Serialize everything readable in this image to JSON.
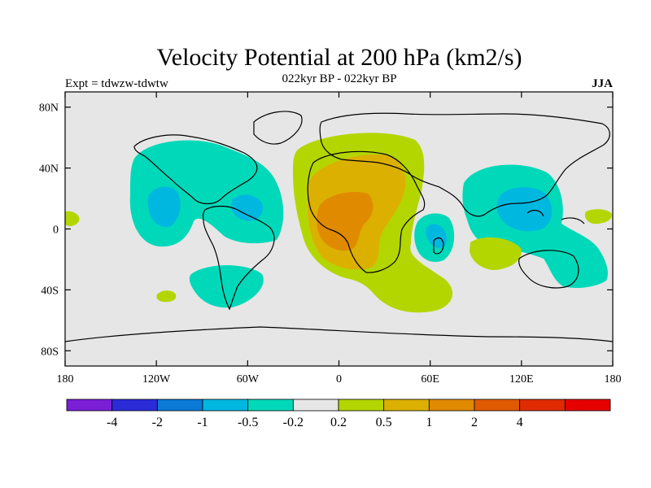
{
  "title": "Velocity Potential at 200 hPa (km2/s)",
  "subtitle": "022kyr BP - 022kyr BP",
  "left_label": "Expt = tdwzw-tdwtw",
  "right_label": "JJA",
  "lat_ticks": [
    {
      "value": 80,
      "label": "80N"
    },
    {
      "value": 40,
      "label": "40N"
    },
    {
      "value": 0,
      "label": "0"
    },
    {
      "value": -40,
      "label": "40S"
    },
    {
      "value": -80,
      "label": "80S"
    }
  ],
  "lon_ticks": [
    {
      "value": -180,
      "label": "180"
    },
    {
      "value": -120,
      "label": "120W"
    },
    {
      "value": -60,
      "label": "60W"
    },
    {
      "value": 0,
      "label": "0"
    },
    {
      "value": 60,
      "label": "60E"
    },
    {
      "value": 120,
      "label": "120E"
    },
    {
      "value": 180,
      "label": "180"
    }
  ],
  "colorbar": {
    "colors": [
      "#7a1fd6",
      "#2b2bd8",
      "#0a7ad6",
      "#00b7e0",
      "#00d9b9",
      "#e6e6e6",
      "#b3d600",
      "#dcb000",
      "#e08a00",
      "#e05a00",
      "#e02b00",
      "#e60000"
    ],
    "labels": [
      "-4",
      "-2",
      "-1",
      "-0.5",
      "-0.2",
      "0.2",
      "0.5",
      "1",
      "2",
      "4"
    ]
  },
  "colors": {
    "background": "#e6e6e6",
    "neg_02": "#00d9b9",
    "neg_05": "#00b7e0",
    "pos_02": "#b3d600",
    "pos_05": "#dcb000",
    "pos_1": "#e08a00"
  }
}
